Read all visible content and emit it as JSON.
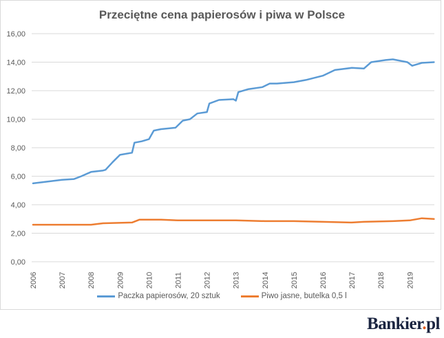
{
  "chart_data": {
    "type": "line",
    "title": "Przeciętne cena papierosów i piwa w Polsce",
    "xlabel": "",
    "ylabel": "",
    "ylim": [
      0,
      16
    ],
    "yticks": [
      "0,00",
      "2,00",
      "4,00",
      "6,00",
      "8,00",
      "10,00",
      "12,00",
      "14,00",
      "16,00"
    ],
    "xticks": [
      "2006",
      "2007",
      "2008",
      "2009",
      "2010",
      "2011",
      "2012",
      "2013",
      "2014",
      "2015",
      "2016",
      "2017",
      "2018",
      "2019"
    ],
    "grid": true,
    "legend_position": "bottom",
    "series": [
      {
        "name": "Paczka papierosów, 20 sztuk",
        "color": "#5B9BD5",
        "x": [
          "2006-01",
          "2006-06",
          "2007-01",
          "2007-06",
          "2007-09",
          "2008-01",
          "2008-06",
          "2008-07",
          "2008-10",
          "2009-01",
          "2009-06",
          "2009-07",
          "2009-10",
          "2010-01",
          "2010-03",
          "2010-06",
          "2010-12",
          "2011-03",
          "2011-06",
          "2011-09",
          "2012-01",
          "2012-02",
          "2012-06",
          "2012-12",
          "2013-01",
          "2013-02",
          "2013-06",
          "2013-12",
          "2014-03",
          "2014-06",
          "2015-01",
          "2015-06",
          "2016-01",
          "2016-06",
          "2017-01",
          "2017-06",
          "2017-09",
          "2018-03",
          "2018-06",
          "2018-12",
          "2019-02",
          "2019-06",
          "2019-11"
        ],
        "values": [
          5.5,
          5.6,
          5.75,
          5.8,
          6.0,
          6.3,
          6.4,
          6.45,
          7.0,
          7.5,
          7.65,
          8.35,
          8.45,
          8.6,
          9.2,
          9.3,
          9.4,
          9.9,
          10.0,
          10.4,
          10.5,
          11.1,
          11.35,
          11.4,
          11.3,
          11.9,
          12.1,
          12.25,
          12.5,
          12.5,
          12.6,
          12.75,
          13.05,
          13.45,
          13.6,
          13.55,
          14.0,
          14.15,
          14.2,
          14.0,
          13.75,
          13.95,
          14.0
        ]
      },
      {
        "name": "Piwo jasne, butelka 0,5 l",
        "color": "#ED7D31",
        "x": [
          "2006-01",
          "2008-01",
          "2008-06",
          "2009-06",
          "2009-09",
          "2010-06",
          "2011-01",
          "2012-01",
          "2013-01",
          "2014-01",
          "2015-01",
          "2016-01",
          "2017-01",
          "2017-06",
          "2018-06",
          "2019-01",
          "2019-06",
          "2019-11"
        ],
        "values": [
          2.6,
          2.6,
          2.7,
          2.75,
          2.95,
          2.95,
          2.9,
          2.9,
          2.9,
          2.85,
          2.85,
          2.8,
          2.75,
          2.8,
          2.85,
          2.9,
          3.05,
          3.0
        ]
      }
    ]
  },
  "logo": "Bankier.pl"
}
